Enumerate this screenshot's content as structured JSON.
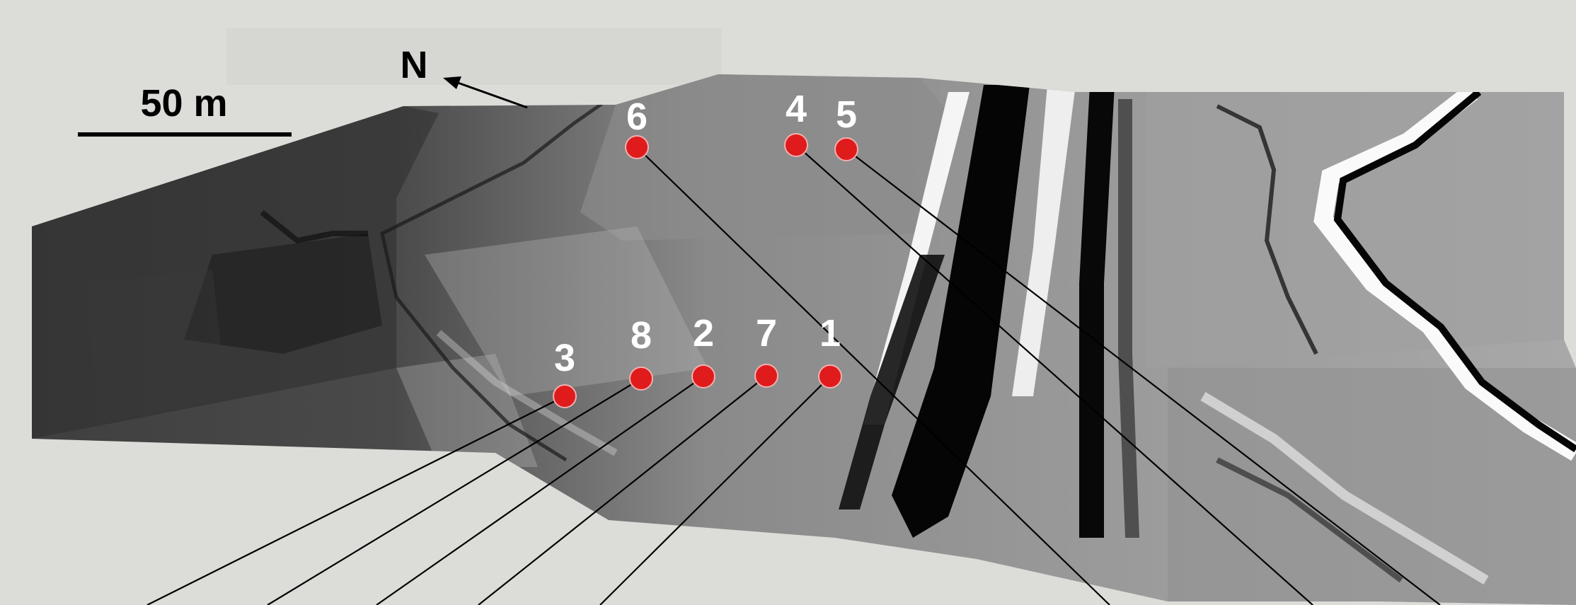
{
  "map": {
    "north_label": "N",
    "scale_label": "50 m"
  },
  "markers": [
    {
      "id": "1",
      "label": "1"
    },
    {
      "id": "2",
      "label": "2"
    },
    {
      "id": "3",
      "label": "3"
    },
    {
      "id": "4",
      "label": "4"
    },
    {
      "id": "5",
      "label": "5"
    },
    {
      "id": "6",
      "label": "6"
    },
    {
      "id": "7",
      "label": "7"
    },
    {
      "id": "8",
      "label": "8"
    }
  ],
  "colors": {
    "background": "#dcdcd8",
    "marker": "#e01b1b",
    "label": "#ffffff",
    "line": "#000000"
  }
}
